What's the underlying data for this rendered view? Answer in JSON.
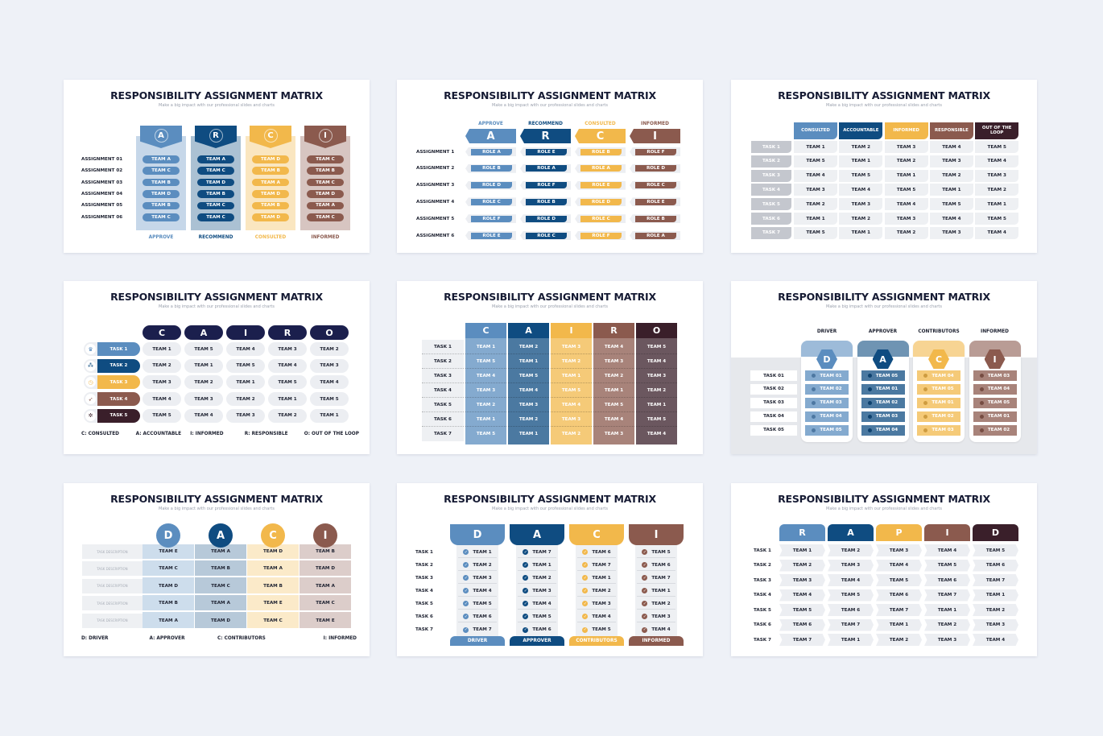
{
  "page": {
    "background": "#eef1f7"
  },
  "palette": {
    "blue": "#5b8dbf",
    "navy": "#0f4c81",
    "yellow": "#f2b84b",
    "brown": "#8b5a4e",
    "dark": "#3a1f2a",
    "midnight": "#1b1f4d",
    "grey": "#eceef2"
  },
  "slides": [
    {
      "title": "RESPONSIBILITY ASSIGNMENT MATRIX",
      "subtitle": "Make a big impact with our professional slides and charts",
      "columns": [
        {
          "letter": "A",
          "label": "APPROVE",
          "color": "#5b8dbf"
        },
        {
          "letter": "R",
          "label": "RECOMMEND",
          "color": "#0f4c81"
        },
        {
          "letter": "C",
          "label": "CONSULTED",
          "color": "#f2b84b"
        },
        {
          "letter": "I",
          "label": "INFORMED",
          "color": "#8b5a4e"
        }
      ],
      "rows": [
        {
          "label": "ASSIGNMENT 01",
          "cells": [
            "TEAM A",
            "TEAM A",
            "TEAM D",
            "TEAM C"
          ]
        },
        {
          "label": "ASSIGNMENT 02",
          "cells": [
            "TEAM C",
            "TEAM C",
            "TEAM B",
            "TEAM B"
          ]
        },
        {
          "label": "ASSIGNMENT 03",
          "cells": [
            "TEAM B",
            "TEAM D",
            "TEAM A",
            "TEAM C"
          ]
        },
        {
          "label": "ASSIGNMENT 04",
          "cells": [
            "TEAM D",
            "TEAM B",
            "TEAM D",
            "TEAM D"
          ]
        },
        {
          "label": "ASSIGNMENT 05",
          "cells": [
            "TEAM B",
            "TEAM C",
            "TEAM B",
            "TEAM A"
          ]
        },
        {
          "label": "ASSIGNMENT 06",
          "cells": [
            "TEAM C",
            "TEAM C",
            "TEAM D",
            "TEAM C"
          ]
        }
      ]
    },
    {
      "title": "RESPONSIBILITY ASSIGNMENT MATRIX",
      "subtitle": "Make a big impact with our professional slides and charts",
      "columns": [
        {
          "letter": "A",
          "label": "APPROVE",
          "color": "#5b8dbf"
        },
        {
          "letter": "R",
          "label": "RECOMMEND",
          "color": "#0f4c81"
        },
        {
          "letter": "C",
          "label": "CONSULTED",
          "color": "#f2b84b"
        },
        {
          "letter": "I",
          "label": "INFORMED",
          "color": "#8b5a4e"
        }
      ],
      "rows": [
        {
          "label": "ASSIGNMENT 1",
          "cells": [
            "ROLE A",
            "ROLE E",
            "ROLE B",
            "ROLE F"
          ]
        },
        {
          "label": "ASSIGNMENT 2",
          "cells": [
            "ROLE B",
            "ROLE A",
            "ROLE A",
            "ROLE D"
          ]
        },
        {
          "label": "ASSIGNMENT 3",
          "cells": [
            "ROLE D",
            "ROLE F",
            "ROLE E",
            "ROLE C"
          ]
        },
        {
          "label": "ASSIGNMENT 4",
          "cells": [
            "ROLE C",
            "ROLE B",
            "ROLE D",
            "ROLE E"
          ]
        },
        {
          "label": "ASSIGNMENT 5",
          "cells": [
            "ROLE F",
            "ROLE D",
            "ROLE C",
            "ROLE B"
          ]
        },
        {
          "label": "ASSIGNMENT 6",
          "cells": [
            "ROLE E",
            "ROLE C",
            "ROLE F",
            "ROLE A"
          ]
        }
      ]
    },
    {
      "title": "RESPONSIBILITY ASSIGNMENT MATRIX",
      "subtitle": "Make a big impact with our professional slides and charts",
      "columns": [
        {
          "letter": "",
          "label": "CONSULTED",
          "color": "#5b8dbf"
        },
        {
          "letter": "",
          "label": "ACCOUNTABLE",
          "color": "#0f4c81"
        },
        {
          "letter": "",
          "label": "INFORMED",
          "color": "#f2b84b"
        },
        {
          "letter": "",
          "label": "RESPONSIBLE",
          "color": "#8b5a4e"
        },
        {
          "letter": "",
          "label": "OUT OF THE LOOP",
          "color": "#3a1f2a"
        }
      ],
      "rows": [
        {
          "label": "TASK 1",
          "cells": [
            "TEAM 1",
            "TEAM 2",
            "TEAM 3",
            "TEAM 4",
            "TEAM 5"
          ]
        },
        {
          "label": "TASK 2",
          "cells": [
            "TEAM 5",
            "TEAM 1",
            "TEAM 2",
            "TEAM 3",
            "TEAM 4"
          ]
        },
        {
          "label": "TASK 3",
          "cells": [
            "TEAM 4",
            "TEAM 5",
            "TEAM 1",
            "TEAM 2",
            "TEAM 3"
          ]
        },
        {
          "label": "TASK 4",
          "cells": [
            "TEAM 3",
            "TEAM 4",
            "TEAM 5",
            "TEAM 1",
            "TEAM 2"
          ]
        },
        {
          "label": "TASK 5",
          "cells": [
            "TEAM 2",
            "TEAM 3",
            "TEAM 4",
            "TEAM 5",
            "TEAM 1"
          ]
        },
        {
          "label": "TASK 6",
          "cells": [
            "TEAM 1",
            "TEAM 2",
            "TEAM 3",
            "TEAM 4",
            "TEAM 5"
          ]
        },
        {
          "label": "TASK 7",
          "cells": [
            "TEAM 5",
            "TEAM 1",
            "TEAM 2",
            "TEAM 3",
            "TEAM 4"
          ]
        }
      ]
    },
    {
      "title": "RESPONSIBILITY ASSIGNMENT MATRIX",
      "subtitle": "Make a big impact with our professional slides and charts",
      "columns": [
        {
          "letter": "C",
          "label": "",
          "color": "#1b1f4d"
        },
        {
          "letter": "A",
          "label": "",
          "color": "#1b1f4d"
        },
        {
          "letter": "I",
          "label": "",
          "color": "#1b1f4d"
        },
        {
          "letter": "R",
          "label": "",
          "color": "#1b1f4d"
        },
        {
          "letter": "O",
          "label": "",
          "color": "#1b1f4d"
        }
      ],
      "rows": [
        {
          "label": "TASK 1",
          "color": "#5b8dbf",
          "icon": "trophy-icon",
          "cells": [
            "TEAM 1",
            "TEAM 5",
            "TEAM 4",
            "TEAM 3",
            "TEAM 2"
          ]
        },
        {
          "label": "TASK 2",
          "color": "#0f4c81",
          "icon": "network-icon",
          "cells": [
            "TEAM 2",
            "TEAM 1",
            "TEAM 5",
            "TEAM 4",
            "TEAM 3"
          ]
        },
        {
          "label": "TASK 3",
          "color": "#f2b84b",
          "icon": "clock-icon",
          "cells": [
            "TEAM 3",
            "TEAM 2",
            "TEAM 1",
            "TEAM 5",
            "TEAM 4"
          ]
        },
        {
          "label": "TASK 4",
          "color": "#8b5a4e",
          "icon": "rocket-icon",
          "cells": [
            "TEAM 4",
            "TEAM 3",
            "TEAM 2",
            "TEAM 1",
            "TEAM 5"
          ]
        },
        {
          "label": "TASK 5",
          "color": "#3a1f2a",
          "icon": "gear-icon",
          "cells": [
            "TEAM 5",
            "TEAM 4",
            "TEAM 3",
            "TEAM 2",
            "TEAM 1"
          ]
        }
      ],
      "legend": [
        "C: CONSULTED",
        "A: ACCOUNTABLE",
        "I: INFORMED",
        "R: RESPONSIBLE",
        "O: OUT OF THE LOOP"
      ]
    },
    {
      "title": "RESPONSIBILITY ASSIGNMENT MATRIX",
      "subtitle": "Make a big impact with our professional slides and charts",
      "columns": [
        {
          "letter": "C",
          "label": "",
          "color": "#5b8dbf"
        },
        {
          "letter": "A",
          "label": "",
          "color": "#0f4c81"
        },
        {
          "letter": "I",
          "label": "",
          "color": "#f2b84b"
        },
        {
          "letter": "R",
          "label": "",
          "color": "#8b5a4e"
        },
        {
          "letter": "O",
          "label": "",
          "color": "#3a1f2a"
        }
      ],
      "rows": [
        {
          "label": "TASK 1",
          "cells": [
            "TEAM 1",
            "TEAM 2",
            "TEAM 3",
            "TEAM 4",
            "TEAM 5"
          ]
        },
        {
          "label": "TASK 2",
          "cells": [
            "TEAM 5",
            "TEAM 1",
            "TEAM 2",
            "TEAM 3",
            "TEAM 4"
          ]
        },
        {
          "label": "TASK 3",
          "cells": [
            "TEAM 4",
            "TEAM 5",
            "TEAM 1",
            "TEAM 2",
            "TEAM 3"
          ]
        },
        {
          "label": "TASK 4",
          "cells": [
            "TEAM 3",
            "TEAM 4",
            "TEAM 5",
            "TEAM 1",
            "TEAM 2"
          ]
        },
        {
          "label": "TASK 5",
          "cells": [
            "TEAM 2",
            "TEAM 3",
            "TEAM 4",
            "TEAM 5",
            "TEAM 1"
          ]
        },
        {
          "label": "TASK 6",
          "cells": [
            "TEAM 1",
            "TEAM 2",
            "TEAM 3",
            "TEAM 4",
            "TEAM 5"
          ]
        },
        {
          "label": "TASK 7",
          "cells": [
            "TEAM 5",
            "TEAM 1",
            "TEAM 2",
            "TEAM 3",
            "TEAM 4"
          ]
        }
      ]
    },
    {
      "title": "RESPONSIBILITY ASSIGNMENT MATRIX",
      "subtitle": "Make a big impact with our professional slides and charts",
      "columns": [
        {
          "letter": "D",
          "label": "DRIVER",
          "color": "#5b8dbf"
        },
        {
          "letter": "A",
          "label": "APPROVER",
          "color": "#0f4c81"
        },
        {
          "letter": "C",
          "label": "CONTRIBUTORS",
          "color": "#f2b84b"
        },
        {
          "letter": "I",
          "label": "INFORMED",
          "color": "#8b5a4e"
        }
      ],
      "rows": [
        {
          "label": "TASK 01",
          "cells": [
            "TEAM 01",
            "TEAM 05",
            "TEAM 04",
            "TEAM 03"
          ]
        },
        {
          "label": "TASK 02",
          "cells": [
            "TEAM 02",
            "TEAM 01",
            "TEAM 05",
            "TEAM 04"
          ]
        },
        {
          "label": "TASK 03",
          "cells": [
            "TEAM 03",
            "TEAM 02",
            "TEAM 01",
            "TEAM 05"
          ]
        },
        {
          "label": "TASK 04",
          "cells": [
            "TEAM 04",
            "TEAM 03",
            "TEAM 02",
            "TEAM 01"
          ]
        },
        {
          "label": "TASK 05",
          "cells": [
            "TEAM 05",
            "TEAM 04",
            "TEAM 03",
            "TEAM 02"
          ]
        }
      ]
    },
    {
      "title": "RESPONSIBILITY ASSIGNMENT MATRIX",
      "subtitle": "Make a big impact with our professional slides and charts",
      "columns": [
        {
          "letter": "D",
          "label": "",
          "color": "#5b8dbf"
        },
        {
          "letter": "A",
          "label": "",
          "color": "#0f4c81"
        },
        {
          "letter": "C",
          "label": "",
          "color": "#f2b84b"
        },
        {
          "letter": "I",
          "label": "",
          "color": "#8b5a4e"
        }
      ],
      "rows": [
        {
          "label": "TASK DESCRIPTION",
          "cells": [
            "TEAM E",
            "TEAM A",
            "TEAM D",
            "TEAM B"
          ]
        },
        {
          "label": "TASK DESCRIPTION",
          "cells": [
            "TEAM C",
            "TEAM B",
            "TEAM A",
            "TEAM D"
          ]
        },
        {
          "label": "TASK DESCRIPTION",
          "cells": [
            "TEAM D",
            "TEAM C",
            "TEAM B",
            "TEAM A"
          ]
        },
        {
          "label": "TASK DESCRIPTION",
          "cells": [
            "TEAM B",
            "TEAM A",
            "TEAM E",
            "TEAM C"
          ]
        },
        {
          "label": "TASK DESCRIPTION",
          "cells": [
            "TEAM A",
            "TEAM D",
            "TEAM C",
            "TEAM E"
          ]
        }
      ],
      "legend": [
        "D: DRIVER",
        "A: APPROVER",
        "C: CONTRIBUTORS",
        "I: INFORMED"
      ]
    },
    {
      "title": "RESPONSIBILITY ASSIGNMENT MATRIX",
      "subtitle": "Make a big impact with our professional slides and charts",
      "columns": [
        {
          "letter": "D",
          "label": "DRIVER",
          "color": "#5b8dbf"
        },
        {
          "letter": "A",
          "label": "APPROVER",
          "color": "#0f4c81"
        },
        {
          "letter": "C",
          "label": "CONTRIBUTORS",
          "color": "#f2b84b"
        },
        {
          "letter": "I",
          "label": "INFORMED",
          "color": "#8b5a4e"
        }
      ],
      "rows": [
        {
          "label": "TASK 1",
          "cells": [
            "TEAM 1",
            "TEAM 7",
            "TEAM 6",
            "TEAM 5"
          ]
        },
        {
          "label": "TASK 2",
          "cells": [
            "TEAM 2",
            "TEAM 1",
            "TEAM 7",
            "TEAM 6"
          ]
        },
        {
          "label": "TASK 3",
          "cells": [
            "TEAM 3",
            "TEAM 2",
            "TEAM 1",
            "TEAM 7"
          ]
        },
        {
          "label": "TASK 4",
          "cells": [
            "TEAM 4",
            "TEAM 3",
            "TEAM 2",
            "TEAM 1"
          ]
        },
        {
          "label": "TASK 5",
          "cells": [
            "TEAM 5",
            "TEAM 4",
            "TEAM 3",
            "TEAM 2"
          ]
        },
        {
          "label": "TASK 6",
          "cells": [
            "TEAM 6",
            "TEAM 5",
            "TEAM 4",
            "TEAM 3"
          ]
        },
        {
          "label": "TASK 7",
          "cells": [
            "TEAM 7",
            "TEAM 6",
            "TEAM 5",
            "TEAM 4"
          ]
        }
      ]
    },
    {
      "title": "RESPONSIBILITY ASSIGNMENT MATRIX",
      "subtitle": "Make a big impact with our professional slides and charts",
      "columns": [
        {
          "letter": "R",
          "label": "",
          "color": "#5b8dbf"
        },
        {
          "letter": "A",
          "label": "",
          "color": "#0f4c81"
        },
        {
          "letter": "P",
          "label": "",
          "color": "#f2b84b"
        },
        {
          "letter": "I",
          "label": "",
          "color": "#8b5a4e"
        },
        {
          "letter": "D",
          "label": "",
          "color": "#3a1f2a"
        }
      ],
      "rows": [
        {
          "label": "TASK 1",
          "cells": [
            "TEAM 1",
            "TEAM 2",
            "TEAM 3",
            "TEAM 4",
            "TEAM 5"
          ]
        },
        {
          "label": "TASK 2",
          "cells": [
            "TEAM 2",
            "TEAM 3",
            "TEAM 4",
            "TEAM 5",
            "TEAM 6"
          ]
        },
        {
          "label": "TASK 3",
          "cells": [
            "TEAM 3",
            "TEAM 4",
            "TEAM 5",
            "TEAM 6",
            "TEAM 7"
          ]
        },
        {
          "label": "TASK 4",
          "cells": [
            "TEAM 4",
            "TEAM 5",
            "TEAM 6",
            "TEAM 7",
            "TEAM 1"
          ]
        },
        {
          "label": "TASK 5",
          "cells": [
            "TEAM 5",
            "TEAM 6",
            "TEAM 7",
            "TEAM 1",
            "TEAM 2"
          ]
        },
        {
          "label": "TASK 6",
          "cells": [
            "TEAM 6",
            "TEAM 7",
            "TEAM 1",
            "TEAM 2",
            "TEAM 3"
          ]
        },
        {
          "label": "TASK 7",
          "cells": [
            "TEAM 7",
            "TEAM 1",
            "TEAM 2",
            "TEAM 3",
            "TEAM 4"
          ]
        }
      ]
    }
  ]
}
